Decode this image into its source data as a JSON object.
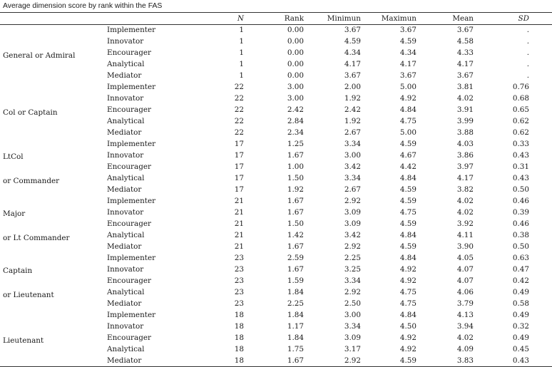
{
  "caption": "Average dimension score by rank within the FAS",
  "headers": {
    "n": "N",
    "rank": "Rank",
    "minimum": "Minimun",
    "maximum": "Maximun",
    "mean": "Mean",
    "sd": "SD"
  },
  "groups": [
    {
      "lines": [
        "General or Admiral"
      ]
    },
    {
      "lines": [
        "Col or Captain"
      ]
    },
    {
      "lines": [
        "LtCol",
        "or Commander"
      ]
    },
    {
      "lines": [
        "Major",
        "or Lt Commander"
      ]
    },
    {
      "lines": [
        "Captain",
        "or Lieutenant"
      ]
    },
    {
      "lines": [
        "Lieutenant"
      ]
    }
  ],
  "rows": [
    {
      "dimension": "Implementer",
      "n": "1",
      "rank": "0.00",
      "min": "3.67",
      "max": "3.67",
      "mean": "3.67",
      "sd": "."
    },
    {
      "dimension": "Innovator",
      "n": "1",
      "rank": "0.00",
      "min": "4.59",
      "max": "4.59",
      "mean": "4.58",
      "sd": "."
    },
    {
      "dimension": "Encourager",
      "n": "1",
      "rank": "0.00",
      "min": "4.34",
      "max": "4.34",
      "mean": "4.33",
      "sd": "."
    },
    {
      "dimension": "Analytical",
      "n": "1",
      "rank": "0.00",
      "min": "4.17",
      "max": "4.17",
      "mean": "4.17",
      "sd": "."
    },
    {
      "dimension": "Mediator",
      "n": "1",
      "rank": "0.00",
      "min": "3.67",
      "max": "3.67",
      "mean": "3.67",
      "sd": "."
    },
    {
      "dimension": "Implementer",
      "n": "22",
      "rank": "3.00",
      "min": "2.00",
      "max": "5.00",
      "mean": "3.81",
      "sd": "0.76"
    },
    {
      "dimension": "Innovator",
      "n": "22",
      "rank": "3.00",
      "min": "1.92",
      "max": "4.92",
      "mean": "4.02",
      "sd": "0.68"
    },
    {
      "dimension": "Encourager",
      "n": "22",
      "rank": "2.42",
      "min": "2.42",
      "max": "4.84",
      "mean": "3.91",
      "sd": "0.65"
    },
    {
      "dimension": "Analytical",
      "n": "22",
      "rank": "2.84",
      "min": "1.92",
      "max": "4.75",
      "mean": "3.99",
      "sd": "0.62"
    },
    {
      "dimension": "Mediator",
      "n": "22",
      "rank": "2.34",
      "min": "2.67",
      "max": "5.00",
      "mean": "3.88",
      "sd": "0.62"
    },
    {
      "dimension": "Implementer",
      "n": "17",
      "rank": "1.25",
      "min": "3.34",
      "max": "4.59",
      "mean": "4.03",
      "sd": "0.33"
    },
    {
      "dimension": "Innovator",
      "n": "17",
      "rank": "1.67",
      "min": "3.00",
      "max": "4.67",
      "mean": "3.86",
      "sd": "0.43"
    },
    {
      "dimension": "Encourager",
      "n": "17",
      "rank": "1.00",
      "min": "3.42",
      "max": "4.42",
      "mean": "3.97",
      "sd": "0.31"
    },
    {
      "dimension": "Analytical",
      "n": "17",
      "rank": "1.50",
      "min": "3.34",
      "max": "4.84",
      "mean": "4.17",
      "sd": "0.43"
    },
    {
      "dimension": "Mediator",
      "n": "17",
      "rank": "1.92",
      "min": "2.67",
      "max": "4.59",
      "mean": "3.82",
      "sd": "0.50"
    },
    {
      "dimension": "Implementer",
      "n": "21",
      "rank": "1.67",
      "min": "2.92",
      "max": "4.59",
      "mean": "4.02",
      "sd": "0.46"
    },
    {
      "dimension": "Innovator",
      "n": "21",
      "rank": "1.67",
      "min": "3.09",
      "max": "4.75",
      "mean": "4.02",
      "sd": "0.39"
    },
    {
      "dimension": "Encourager",
      "n": "21",
      "rank": "1.50",
      "min": "3.09",
      "max": "4.59",
      "mean": "3.92",
      "sd": "0.46"
    },
    {
      "dimension": "Analytical",
      "n": "21",
      "rank": "1.42",
      "min": "3.42",
      "max": "4.84",
      "mean": "4.11",
      "sd": "0.38"
    },
    {
      "dimension": "Mediator",
      "n": "21",
      "rank": "1.67",
      "min": "2.92",
      "max": "4.59",
      "mean": "3.90",
      "sd": "0.50"
    },
    {
      "dimension": "Implementer",
      "n": "23",
      "rank": "2.59",
      "min": "2.25",
      "max": "4.84",
      "mean": "4.05",
      "sd": "0.63"
    },
    {
      "dimension": "Innovator",
      "n": "23",
      "rank": "1.67",
      "min": "3.25",
      "max": "4.92",
      "mean": "4.07",
      "sd": "0.47"
    },
    {
      "dimension": "Encourager",
      "n": "23",
      "rank": "1.59",
      "min": "3.34",
      "max": "4.92",
      "mean": "4.07",
      "sd": "0.42"
    },
    {
      "dimension": "Analytical",
      "n": "23",
      "rank": "1.84",
      "min": "2.92",
      "max": "4.75",
      "mean": "4.06",
      "sd": "0.49"
    },
    {
      "dimension": "Mediator",
      "n": "23",
      "rank": "2.25",
      "min": "2.50",
      "max": "4.75",
      "mean": "3.79",
      "sd": "0.58"
    },
    {
      "dimension": "Implementer",
      "n": "18",
      "rank": "1.84",
      "min": "3.00",
      "max": "4.84",
      "mean": "4.13",
      "sd": "0.49"
    },
    {
      "dimension": "Innovator",
      "n": "18",
      "rank": "1.17",
      "min": "3.34",
      "max": "4.50",
      "mean": "3.94",
      "sd": "0.32"
    },
    {
      "dimension": "Encourager",
      "n": "18",
      "rank": "1.84",
      "min": "3.09",
      "max": "4.92",
      "mean": "4.02",
      "sd": "0.49"
    },
    {
      "dimension": "Analytical",
      "n": "18",
      "rank": "1.75",
      "min": "3.17",
      "max": "4.92",
      "mean": "4.09",
      "sd": "0.45"
    },
    {
      "dimension": "Mediator",
      "n": "18",
      "rank": "1.67",
      "min": "2.92",
      "max": "4.59",
      "mean": "3.83",
      "sd": "0.43"
    }
  ]
}
